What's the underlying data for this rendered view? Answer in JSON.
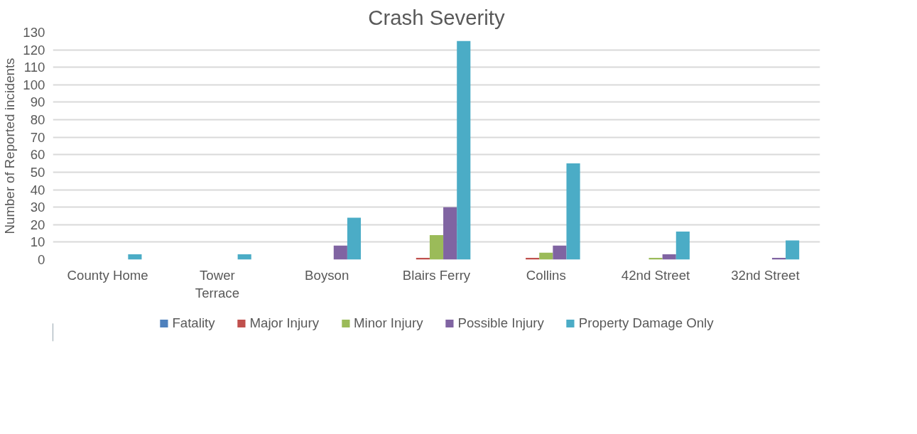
{
  "chart_data": {
    "type": "bar",
    "title": "Crash Severity",
    "ylabel": "Number of Reported incidents",
    "categories": [
      "County Home",
      "Tower\nTerrace",
      "Boyson",
      "Blairs Ferry",
      "Collins",
      "42nd Street",
      "32nd Street"
    ],
    "series": [
      {
        "name": "Fatality",
        "color": "#4f81bd",
        "values": [
          0,
          0,
          0,
          0,
          0,
          0,
          0
        ]
      },
      {
        "name": "Major Injury",
        "color": "#c0504d",
        "values": [
          0,
          0,
          0,
          1,
          1,
          0,
          0
        ]
      },
      {
        "name": "Minor Injury",
        "color": "#9bbb59",
        "values": [
          0,
          0,
          0,
          14,
          4,
          1,
          0
        ]
      },
      {
        "name": "Possible Injury",
        "color": "#8064a2",
        "values": [
          0,
          0,
          8,
          30,
          8,
          3,
          1
        ]
      },
      {
        "name": "Property Damage Only",
        "color": "#4bacc6",
        "values": [
          3,
          3,
          24,
          125,
          55,
          16,
          11
        ]
      }
    ],
    "ylim": [
      0,
      130
    ],
    "yticks": [
      0,
      10,
      20,
      30,
      40,
      50,
      60,
      70,
      80,
      90,
      100,
      110,
      120,
      130
    ],
    "grid": "y",
    "legend": "bottom"
  }
}
